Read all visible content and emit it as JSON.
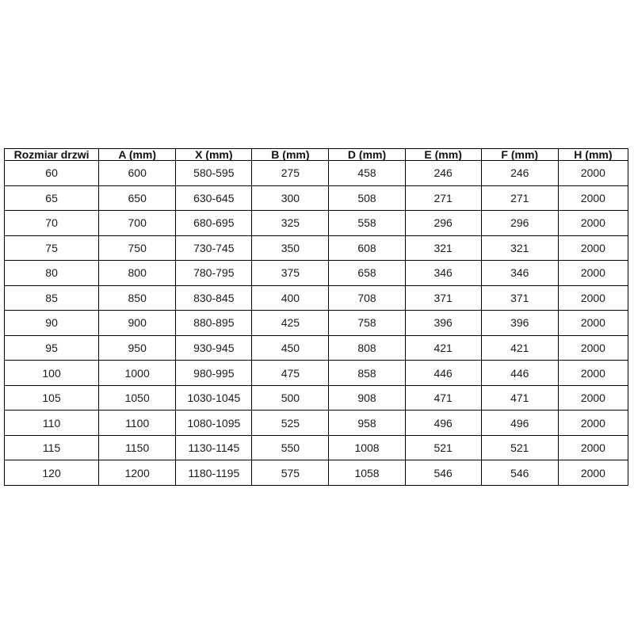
{
  "table": {
    "headers": [
      "Rozmiar drzwi",
      "A (mm)",
      "X (mm)",
      "B (mm)",
      "D (mm)",
      "E (mm)",
      "F (mm)",
      "H (mm)"
    ],
    "rows": [
      [
        "60",
        "600",
        "580-595",
        "275",
        "458",
        "246",
        "246",
        "2000"
      ],
      [
        "65",
        "650",
        "630-645",
        "300",
        "508",
        "271",
        "271",
        "2000"
      ],
      [
        "70",
        "700",
        "680-695",
        "325",
        "558",
        "296",
        "296",
        "2000"
      ],
      [
        "75",
        "750",
        "730-745",
        "350",
        "608",
        "321",
        "321",
        "2000"
      ],
      [
        "80",
        "800",
        "780-795",
        "375",
        "658",
        "346",
        "346",
        "2000"
      ],
      [
        "85",
        "850",
        "830-845",
        "400",
        "708",
        "371",
        "371",
        "2000"
      ],
      [
        "90",
        "900",
        "880-895",
        "425",
        "758",
        "396",
        "396",
        "2000"
      ],
      [
        "95",
        "950",
        "930-945",
        "450",
        "808",
        "421",
        "421",
        "2000"
      ],
      [
        "100",
        "1000",
        "980-995",
        "475",
        "858",
        "446",
        "446",
        "2000"
      ],
      [
        "105",
        "1050",
        "1030-1045",
        "500",
        "908",
        "471",
        "471",
        "2000"
      ],
      [
        "110",
        "1100",
        "1080-1095",
        "525",
        "958",
        "496",
        "496",
        "2000"
      ],
      [
        "115",
        "1150",
        "1130-1145",
        "550",
        "1008",
        "521",
        "521",
        "2000"
      ],
      [
        "120",
        "1200",
        "1180-1195",
        "575",
        "1058",
        "546",
        "546",
        "2000"
      ]
    ],
    "colors": {
      "border": "#000000",
      "text": "#1a1a1a",
      "background": "#ffffff"
    }
  }
}
